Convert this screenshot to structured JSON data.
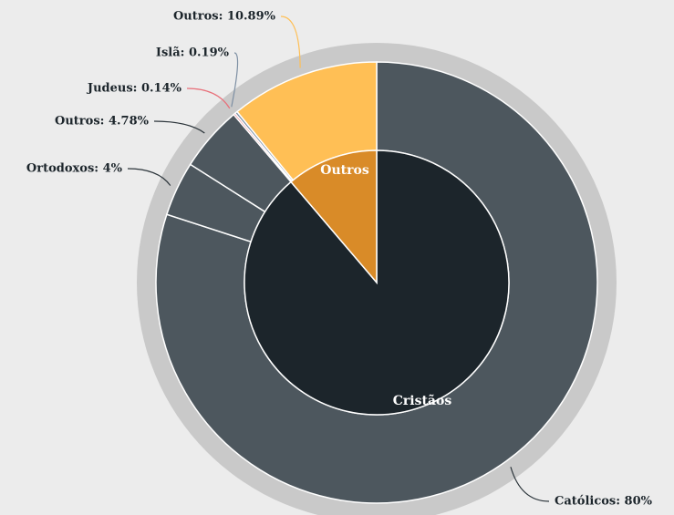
{
  "chart_data": {
    "type": "sunburst",
    "series": [
      {
        "name": "Cristãos",
        "color": "#1c252b",
        "values": [
          80,
          4,
          4.78
        ],
        "value_labels": [
          "Católicos: 80%",
          "Ortodoxos: 4%",
          "Outros: 4.78%"
        ],
        "colors": [
          "#4d575e",
          "#4d575e",
          "#4d575e"
        ]
      },
      {
        "name": "Outros",
        "color": "#d98b28",
        "values": [
          0.14,
          0.19,
          10.89
        ],
        "value_labels": [
          "Judeus: 0.14%",
          "Islã: 0.19%",
          "Outros: 10.89%"
        ],
        "colors": [
          "#e8707a",
          "#7d8fa3",
          "#ffbf55"
        ]
      }
    ]
  }
}
